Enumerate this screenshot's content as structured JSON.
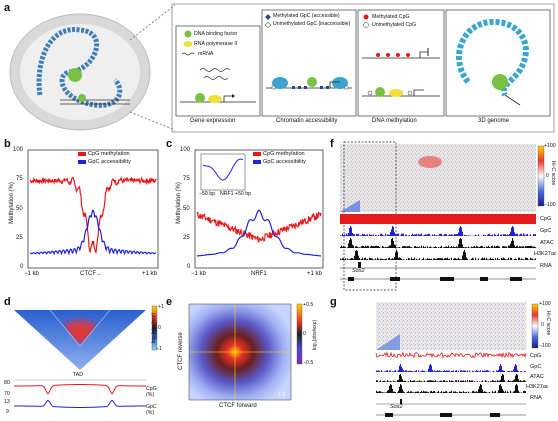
{
  "labels": {
    "a": "a",
    "b": "b",
    "c": "c",
    "d": "d",
    "e": "e",
    "f": "f",
    "g": "g"
  },
  "panel_a": {
    "legend_gene": [
      "DNA binding factor",
      "RNA polymerase II",
      "mRNA"
    ],
    "legend_chrom": [
      "Methylated GpC (accessible)",
      "Unmethylated GpC (inaccessible)"
    ],
    "legend_meth": [
      "Methylated CpG",
      "Unmethylated CpG"
    ],
    "captions": {
      "gene": "Gene expression",
      "chrom": "Chromatin accessibility",
      "meth": "DNA methylation",
      "genome": "3D genome"
    }
  },
  "panel_b": {
    "legend": [
      "CpG methylation",
      "GpC accessibility"
    ],
    "ylabel": "Methylation (%)",
    "yticks": [
      "100",
      "75",
      "50",
      "25",
      "0"
    ],
    "xticks": [
      "−1 kb",
      "CTCF→",
      "+1 kb"
    ],
    "colors": {
      "cpg": "#e41a1c",
      "gpc": "#2222dd"
    }
  },
  "panel_c": {
    "legend": [
      "CpG methylation",
      "GpC accessibility"
    ],
    "ylabel": "Methylation (%)",
    "yticks": [
      "100",
      "75",
      "50",
      "25",
      "0"
    ],
    "xticks": [
      "−1 kb",
      "NRF1",
      "+1 kb"
    ],
    "inset_xticks": [
      "−50 bp",
      "NRF1",
      "+50 bp"
    ]
  },
  "panel_d": {
    "scale": [
      "+1",
      "0",
      "−1"
    ],
    "scale_label": "log₂(obs/exp)",
    "tad": "TAD",
    "tracks": [
      {
        "label": "CpG (%)",
        "ticks": [
          "80",
          "70"
        ]
      },
      {
        "label": "GpC (%)",
        "ticks": [
          "13",
          "9"
        ]
      }
    ]
  },
  "panel_e": {
    "xlabel": "CTCF forward",
    "ylabel": "CTCF reverse",
    "scale": [
      "+0.5",
      "0",
      "−0.5"
    ],
    "scale_label": "log₂(obs/exp)",
    "corner": "1.6"
  },
  "panel_f": {
    "scale": [
      "+100",
      "0",
      "−100"
    ],
    "scale_label": "Hi-C score",
    "tracks": [
      "CpG",
      "GpC",
      "ATAC",
      "H3K27ac",
      "RNA"
    ],
    "gene": "Sox2"
  },
  "panel_g": {
    "scale": [
      "+100",
      "0",
      "−100"
    ],
    "scale_label": "Hi-C score",
    "tracks": [
      "CpG",
      "GpC",
      "ATAC",
      "H3K27ac",
      "RNA"
    ],
    "gene": "Sox2"
  }
}
